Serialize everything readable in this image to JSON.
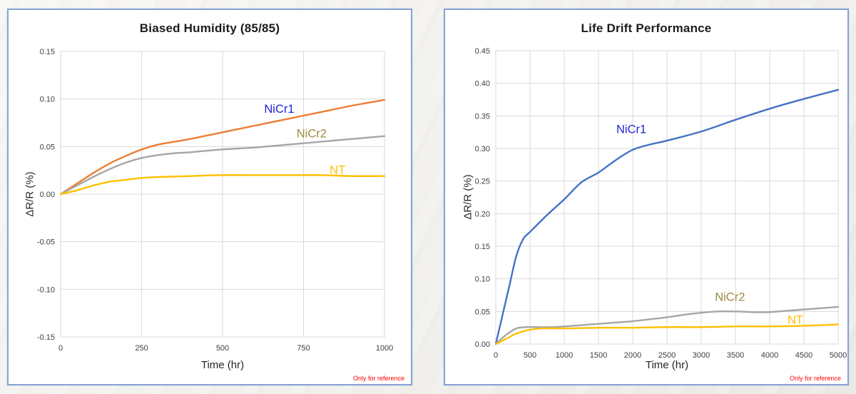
{
  "chart_data": [
    {
      "type": "line",
      "title": "Biased Humidity (85/85)",
      "xlabel": "Time (hr)",
      "ylabel": "ΔR/R (%)",
      "note": "Only for reference",
      "xlim": [
        0,
        1000
      ],
      "ylim": [
        -0.15,
        0.15
      ],
      "xticks": [
        0,
        250,
        500,
        750,
        1000
      ],
      "yticks": [
        -0.15,
        -0.1,
        -0.05,
        0.0,
        0.05,
        0.1,
        0.15
      ],
      "ytick_decimals": 2,
      "grid": true,
      "legend_position": "inline-labels",
      "colors": {
        "grid": "#d9d9d9",
        "tick_text": "#3d3d3d"
      },
      "series": [
        {
          "name": "NiCr1",
          "line_color": "#ED7D31",
          "label_color": "#2323D9",
          "label_pos": [
            675,
            0.09
          ],
          "points": [
            [
              0,
              0
            ],
            [
              50,
              0.011
            ],
            [
              100,
              0.022
            ],
            [
              150,
              0.032
            ],
            [
              200,
              0.04
            ],
            [
              250,
              0.047
            ],
            [
              300,
              0.052
            ],
            [
              350,
              0.055
            ],
            [
              400,
              0.058
            ],
            [
              500,
              0.065
            ],
            [
              600,
              0.072
            ],
            [
              700,
              0.079
            ],
            [
              800,
              0.086
            ],
            [
              900,
              0.093
            ],
            [
              1000,
              0.099
            ]
          ]
        },
        {
          "name": "NiCr2",
          "line_color": "#A6A6A6",
          "label_color": "#9C8B40",
          "label_pos": [
            775,
            0.064
          ],
          "points": [
            [
              0,
              0
            ],
            [
              50,
              0.009
            ],
            [
              100,
              0.018
            ],
            [
              150,
              0.026
            ],
            [
              200,
              0.033
            ],
            [
              250,
              0.038
            ],
            [
              300,
              0.041
            ],
            [
              350,
              0.043
            ],
            [
              400,
              0.044
            ],
            [
              500,
              0.047
            ],
            [
              600,
              0.049
            ],
            [
              700,
              0.052
            ],
            [
              800,
              0.055
            ],
            [
              900,
              0.058
            ],
            [
              1000,
              0.061
            ]
          ]
        },
        {
          "name": "NT",
          "line_color": "#FFC000",
          "label_color": "#FFC000",
          "label_pos": [
            855,
            0.026
          ],
          "points": [
            [
              0,
              0
            ],
            [
              50,
              0.004
            ],
            [
              100,
              0.009
            ],
            [
              150,
              0.013
            ],
            [
              200,
              0.015
            ],
            [
              250,
              0.017
            ],
            [
              300,
              0.018
            ],
            [
              400,
              0.019
            ],
            [
              500,
              0.02
            ],
            [
              600,
              0.02
            ],
            [
              700,
              0.02
            ],
            [
              800,
              0.02
            ],
            [
              900,
              0.019
            ],
            [
              1000,
              0.019
            ]
          ]
        }
      ]
    },
    {
      "type": "line",
      "title": "Life Drift Performance",
      "xlabel": "Time (hr)",
      "ylabel": "ΔR/R (%)",
      "note": "Only for reference",
      "xlim": [
        0,
        5000
      ],
      "ylim": [
        0,
        0.45
      ],
      "xticks": [
        0,
        500,
        1000,
        1500,
        2000,
        2500,
        3000,
        3500,
        4000,
        4500,
        5000
      ],
      "yticks": [
        0.0,
        0.05,
        0.1,
        0.15,
        0.2,
        0.25,
        0.3,
        0.35,
        0.4,
        0.45
      ],
      "ytick_decimals": 2,
      "grid": true,
      "legend_position": "inline-labels",
      "colors": {
        "grid": "#d9d9d9",
        "tick_text": "#3d3d3d"
      },
      "series": [
        {
          "name": "NiCr1",
          "line_color": "#4472C4",
          "label_color": "#2323D9",
          "label_pos": [
            1980,
            0.33
          ],
          "points": [
            [
              0,
              0
            ],
            [
              100,
              0.045
            ],
            [
              200,
              0.09
            ],
            [
              300,
              0.135
            ],
            [
              400,
              0.161
            ],
            [
              500,
              0.172
            ],
            [
              750,
              0.198
            ],
            [
              1000,
              0.222
            ],
            [
              1250,
              0.248
            ],
            [
              1500,
              0.263
            ],
            [
              1750,
              0.282
            ],
            [
              2000,
              0.298
            ],
            [
              2250,
              0.306
            ],
            [
              2500,
              0.312
            ],
            [
              3000,
              0.326
            ],
            [
              3500,
              0.344
            ],
            [
              4000,
              0.361
            ],
            [
              4500,
              0.376
            ],
            [
              5000,
              0.39
            ]
          ]
        },
        {
          "name": "NiCr2",
          "line_color": "#A6A6A6",
          "label_color": "#9C8B40",
          "label_pos": [
            3420,
            0.073
          ],
          "points": [
            [
              0,
              0
            ],
            [
              150,
              0.014
            ],
            [
              300,
              0.024
            ],
            [
              450,
              0.026
            ],
            [
              600,
              0.026
            ],
            [
              800,
              0.026
            ],
            [
              1000,
              0.027
            ],
            [
              1250,
              0.029
            ],
            [
              1500,
              0.031
            ],
            [
              1750,
              0.033
            ],
            [
              2000,
              0.035
            ],
            [
              2250,
              0.038
            ],
            [
              2500,
              0.041
            ],
            [
              2750,
              0.045
            ],
            [
              3000,
              0.048
            ],
            [
              3250,
              0.05
            ],
            [
              3500,
              0.05
            ],
            [
              3750,
              0.049
            ],
            [
              4000,
              0.049
            ],
            [
              4250,
              0.051
            ],
            [
              4500,
              0.053
            ],
            [
              4750,
              0.055
            ],
            [
              5000,
              0.057
            ]
          ]
        },
        {
          "name": "NT",
          "line_color": "#FFC000",
          "label_color": "#FFC000",
          "label_pos": [
            4375,
            0.038
          ],
          "points": [
            [
              0,
              0
            ],
            [
              150,
              0.008
            ],
            [
              300,
              0.016
            ],
            [
              500,
              0.022
            ],
            [
              700,
              0.024
            ],
            [
              1000,
              0.024
            ],
            [
              1500,
              0.025
            ],
            [
              2000,
              0.025
            ],
            [
              2500,
              0.026
            ],
            [
              3000,
              0.026
            ],
            [
              3500,
              0.027
            ],
            [
              4000,
              0.027
            ],
            [
              4500,
              0.028
            ],
            [
              5000,
              0.03
            ]
          ]
        }
      ]
    }
  ]
}
